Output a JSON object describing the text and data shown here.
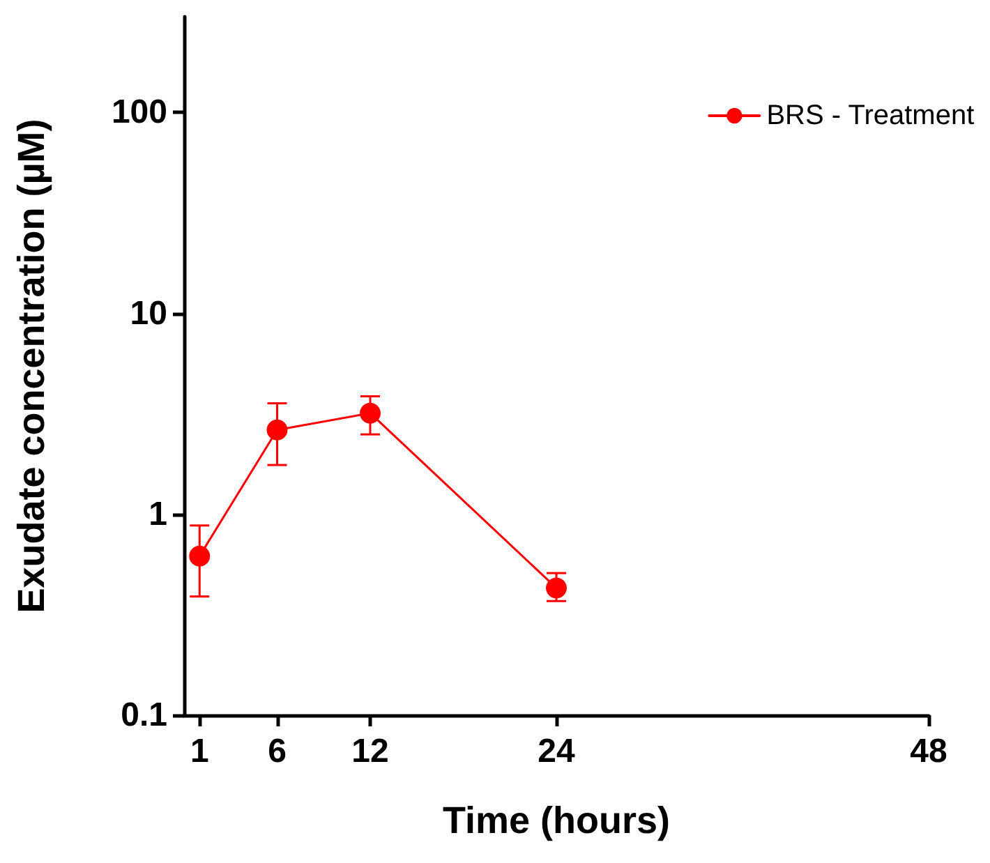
{
  "chart_data": {
    "type": "line",
    "xlabel": "Time (hours)",
    "ylabel": "Exudate concentration (µM)",
    "x": [
      1,
      6,
      12,
      24
    ],
    "series": [
      {
        "name": "BRS - Treatment",
        "color": "#ff0000",
        "values": [
          0.62,
          2.63,
          3.19,
          0.43
        ],
        "errors": [
          [
            0.39,
            0.88
          ],
          [
            1.76,
            3.57
          ],
          [
            2.5,
            3.87
          ],
          [
            0.37,
            0.51
          ]
        ]
      }
    ],
    "xlim": [
      0,
      48
    ],
    "xticks": [
      1,
      6,
      12,
      24,
      48
    ],
    "ylim": [
      0.1,
      300
    ],
    "yticks": [
      0.1,
      1,
      10,
      100
    ],
    "log": "y",
    "grid": false,
    "legend": "top right",
    "marker": "circle",
    "line_style": "solid"
  }
}
